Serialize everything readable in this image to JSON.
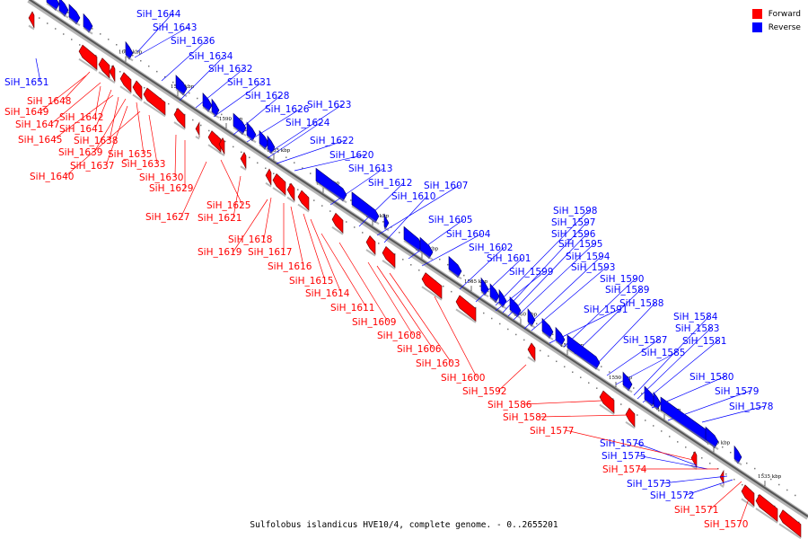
{
  "caption": "Sulfolobus islandicus HVE10/4, complete genome. - 0..2655201",
  "legend": [
    {
      "label": "Forward",
      "color": "#ff0000"
    },
    {
      "label": "Reverse",
      "color": "#0000ff"
    }
  ],
  "ticks": [
    "1600 kbp",
    "1595 kbp",
    "1590 kbp",
    "1585 kbp",
    "1580 kbp",
    "1575 kbp",
    "1570 kbp",
    "1565 kbp",
    "1560 kbp",
    "1555 kbp",
    "1550 kbp",
    "1545 kbp",
    "1540 kbp",
    "1535 kbp"
  ],
  "reverse_genes": [
    "SiH_1651",
    "SiH_1644",
    "SiH_1643",
    "SiH_1636",
    "SiH_1634",
    "SiH_1632",
    "SiH_1631",
    "SiH_1628",
    "SiH_1626",
    "SiH_1623",
    "SiH_1624",
    "SiH_1622",
    "SiH_1620",
    "SiH_1613",
    "SiH_1612",
    "SiH_1607",
    "SiH_1610",
    "SiH_1605",
    "SiH_1604",
    "SiH_1602",
    "SiH_1601",
    "SiH_1599",
    "SiH_1598",
    "SiH_1597",
    "SiH_1596",
    "SiH_1595",
    "SiH_1594",
    "SiH_1593",
    "SiH_1591",
    "SiH_1590",
    "SiH_1589",
    "SiH_1588",
    "SiH_1587",
    "SiH_1585",
    "SiH_1584",
    "SiH_1583",
    "SiH_1581",
    "SiH_1580",
    "SiH_1579",
    "SiH_1578",
    "SiH_1576",
    "SiH_1575",
    "SiH_1573",
    "SiH_1572"
  ],
  "forward_genes": [
    "SiH_1648",
    "SiH_1649",
    "SiH_1642",
    "SiH_1647",
    "SiH_1641",
    "SiH_1645",
    "SiH_1638",
    "SiH_1639",
    "SiH_1635",
    "SiH_1637",
    "SiH_1633",
    "SiH_1640",
    "SiH_1630",
    "SiH_1629",
    "SiH_1625",
    "SiH_1627",
    "SiH_1621",
    "SiH_1618",
    "SiH_1619",
    "SiH_1617",
    "SiH_1616",
    "SiH_1615",
    "SiH_1614",
    "SiH_1611",
    "SiH_1609",
    "SiH_1608",
    "SiH_1606",
    "SiH_1603",
    "SiH_1600",
    "SiH_1592",
    "SiH_1586",
    "SiH_1582",
    "SiH_1577",
    "SiH_1574",
    "SiH_1571",
    "SiH_1570"
  ]
}
